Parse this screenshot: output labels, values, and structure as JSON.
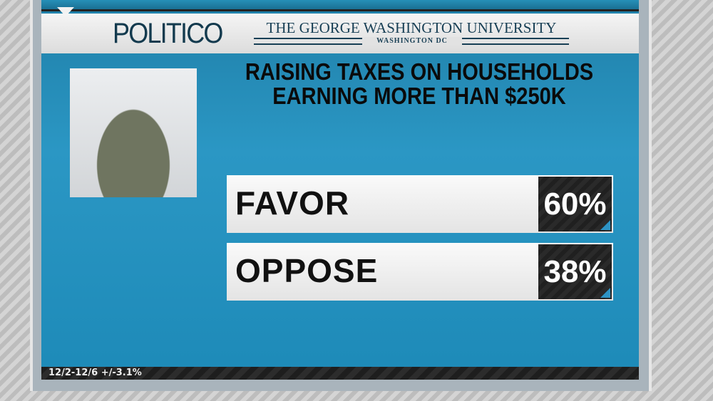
{
  "header": {
    "logo_left": "POLITICO",
    "logo_right": "THE GEORGE WASHINGTON UNIVERSITY",
    "logo_right_sub": "WASHINGTON DC"
  },
  "title_line1": "RAISING TAXES ON HOUSEHOLDS",
  "title_line2": "EARNING MORE THAN $250K",
  "results": [
    {
      "label": "FAVOR",
      "value": "60%"
    },
    {
      "label": "OPPOSE",
      "value": "38%"
    }
  ],
  "footer": "12/2-12/6 +/-3.1%",
  "colors": {
    "background_blue": "#2b97c4",
    "accent_corner": "#2d93c4"
  }
}
